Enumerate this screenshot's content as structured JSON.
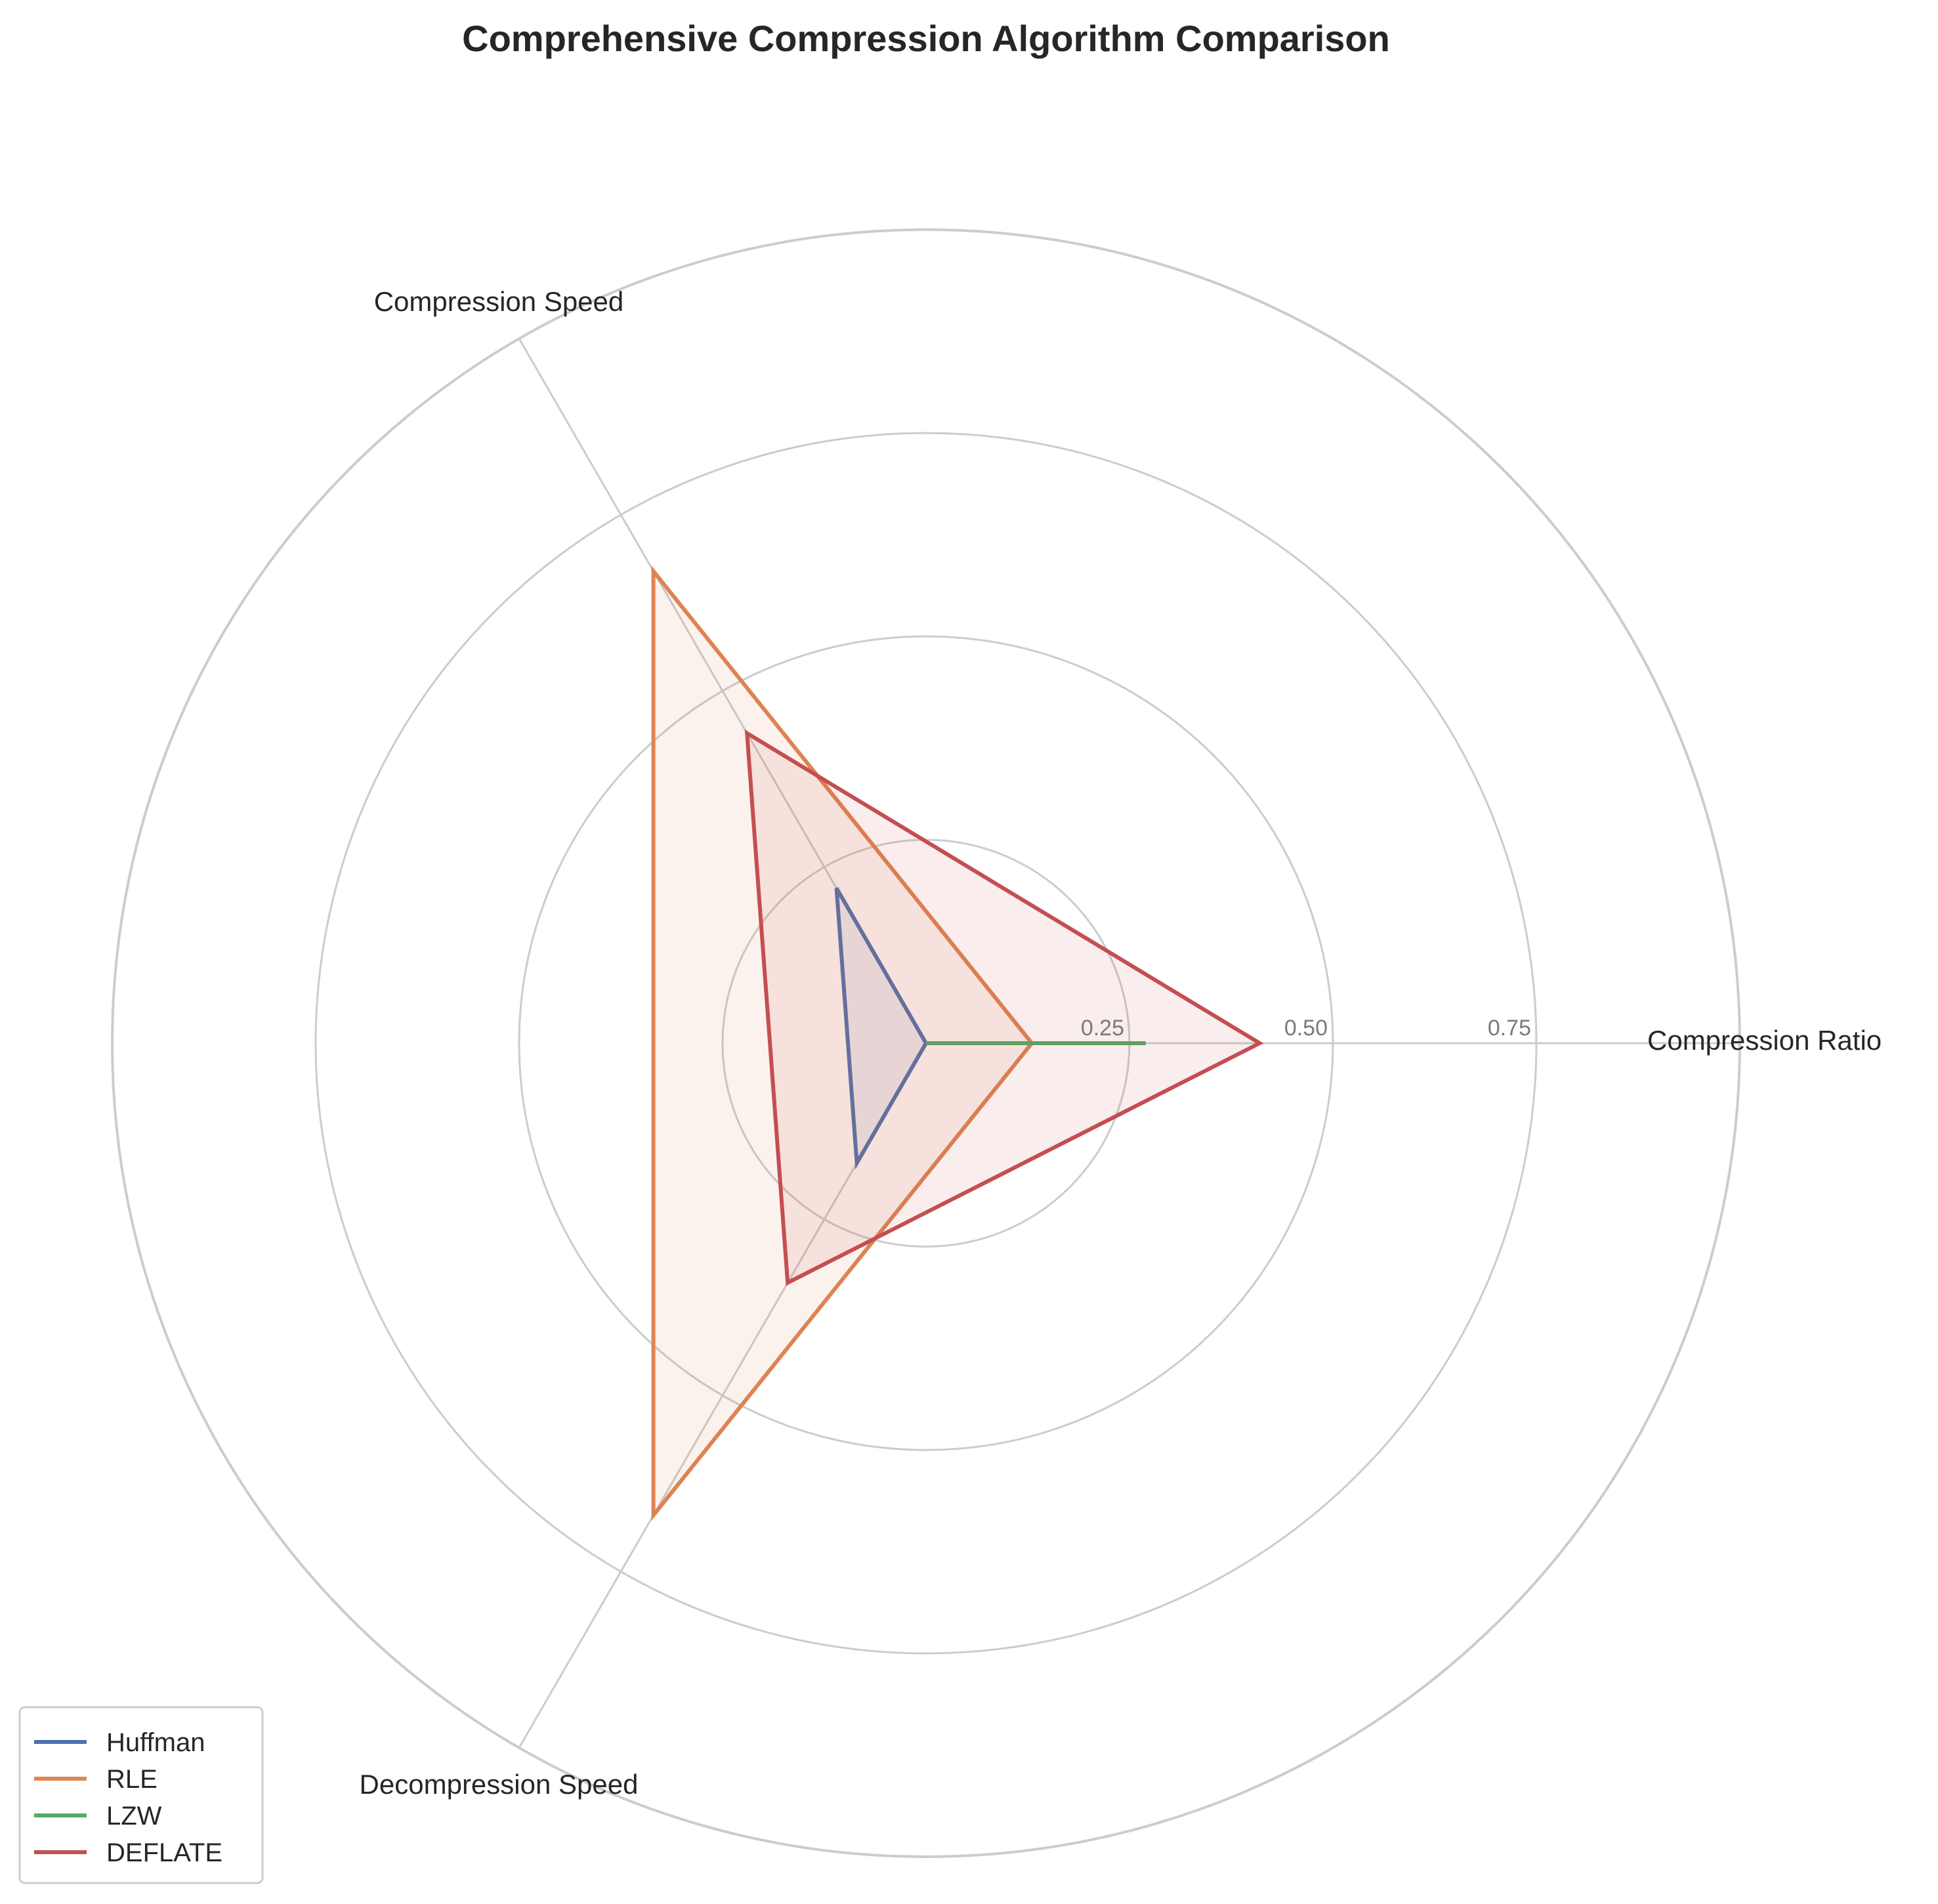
{
  "chart_data": {
    "type": "radar",
    "title": "Comprehensive Compression Algorithm Comparison",
    "axes": [
      "Compression Ratio",
      "Compression Speed",
      "Decompression Speed"
    ],
    "rlim": [
      0,
      1
    ],
    "rticks": [
      0.25,
      0.5,
      0.75
    ],
    "rtick_labels": [
      "0.25",
      "0.50",
      "0.75"
    ],
    "grid": true,
    "legend_position": "lower-left",
    "series": [
      {
        "name": "Huffman",
        "color": "#4c72b0",
        "values": [
          0.0,
          0.22,
          0.17
        ]
      },
      {
        "name": "RLE",
        "color": "#dd8452",
        "values": [
          0.13,
          0.67,
          0.67
        ]
      },
      {
        "name": "LZW",
        "color": "#55a868",
        "values": [
          0.27,
          0.0,
          0.0
        ]
      },
      {
        "name": "DEFLATE",
        "color": "#c44e52",
        "values": [
          0.41,
          0.44,
          0.34
        ]
      }
    ]
  }
}
